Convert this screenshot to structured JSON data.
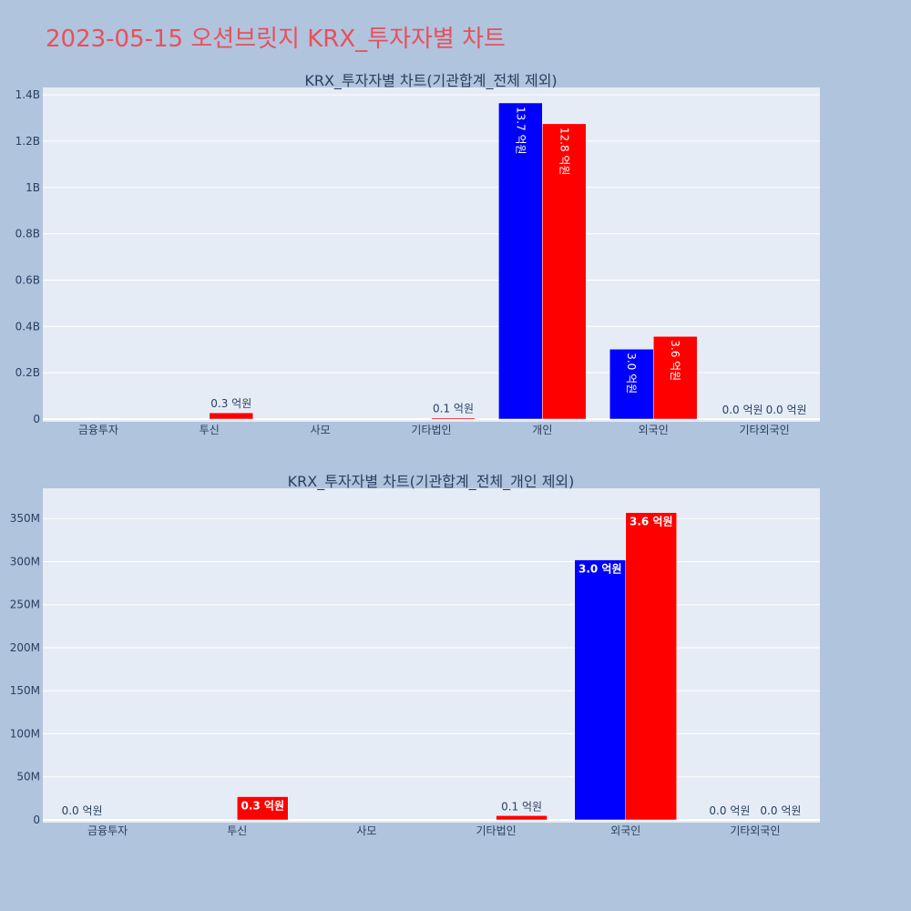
{
  "title": "2023-05-15 오션브릿지 KRX_투자자별 차트",
  "colors": {
    "background": "#b0c4de",
    "plot_bg": "#e5ecf6",
    "title": "#e8505b",
    "series_a": "#0000ff",
    "series_b": "#ff0000",
    "text": "#2a3f5f"
  },
  "chart_data": [
    {
      "type": "bar",
      "title": "KRX_투자자별 차트(기관합계_전체 제외)",
      "categories": [
        "금융투자",
        "투신",
        "사모",
        "기타법인",
        "개인",
        "외국인",
        "기타외국인"
      ],
      "ylim": [
        0,
        1420000000
      ],
      "yticks": [
        0,
        200000000,
        400000000,
        600000000,
        800000000,
        1000000000,
        1200000000,
        1400000000
      ],
      "ytick_labels": [
        "0",
        "0.2B",
        "0.4B",
        "0.6B",
        "0.8B",
        "1B",
        "1.2B",
        "1.4B"
      ],
      "grid": true,
      "series": [
        {
          "color": "#0000ff",
          "values": [
            0,
            0,
            0,
            0,
            1365000000,
            302000000,
            0
          ],
          "labels": [
            "",
            "",
            "",
            "",
            "13.7 억원",
            "3.0 억원",
            "0.0 억원"
          ]
        },
        {
          "color": "#ff0000",
          "values": [
            0,
            27000000,
            0,
            5000000,
            1275000000,
            357000000,
            0
          ],
          "labels": [
            "",
            "0.3 억원",
            "",
            "0.1 억원",
            "12.8 억원",
            "3.6 억원",
            "0.0 억원"
          ]
        }
      ]
    },
    {
      "type": "bar",
      "title": "KRX_투자자별 차트(기관합계_전체_개인 제외)",
      "categories": [
        "금융투자",
        "투신",
        "사모",
        "기타법인",
        "외국인",
        "기타외국인"
      ],
      "ylim": [
        0,
        382000000
      ],
      "yticks": [
        0,
        50000000,
        100000000,
        150000000,
        200000000,
        250000000,
        300000000,
        350000000
      ],
      "ytick_labels": [
        "0",
        "50M",
        "100M",
        "150M",
        "200M",
        "250M",
        "300M",
        "350M"
      ],
      "grid": true,
      "series": [
        {
          "color": "#0000ff",
          "values": [
            0,
            0,
            0,
            0,
            302000000,
            0
          ],
          "labels": [
            "0.0 억원",
            "",
            "",
            "",
            "3.0 억원",
            "0.0 억원"
          ]
        },
        {
          "color": "#ff0000",
          "values": [
            0,
            27000000,
            0,
            5000000,
            357000000,
            0
          ],
          "labels": [
            "",
            "0.3 억원",
            "",
            "0.1 억원",
            "3.6 억원",
            "0.0 억원"
          ]
        }
      ]
    }
  ]
}
